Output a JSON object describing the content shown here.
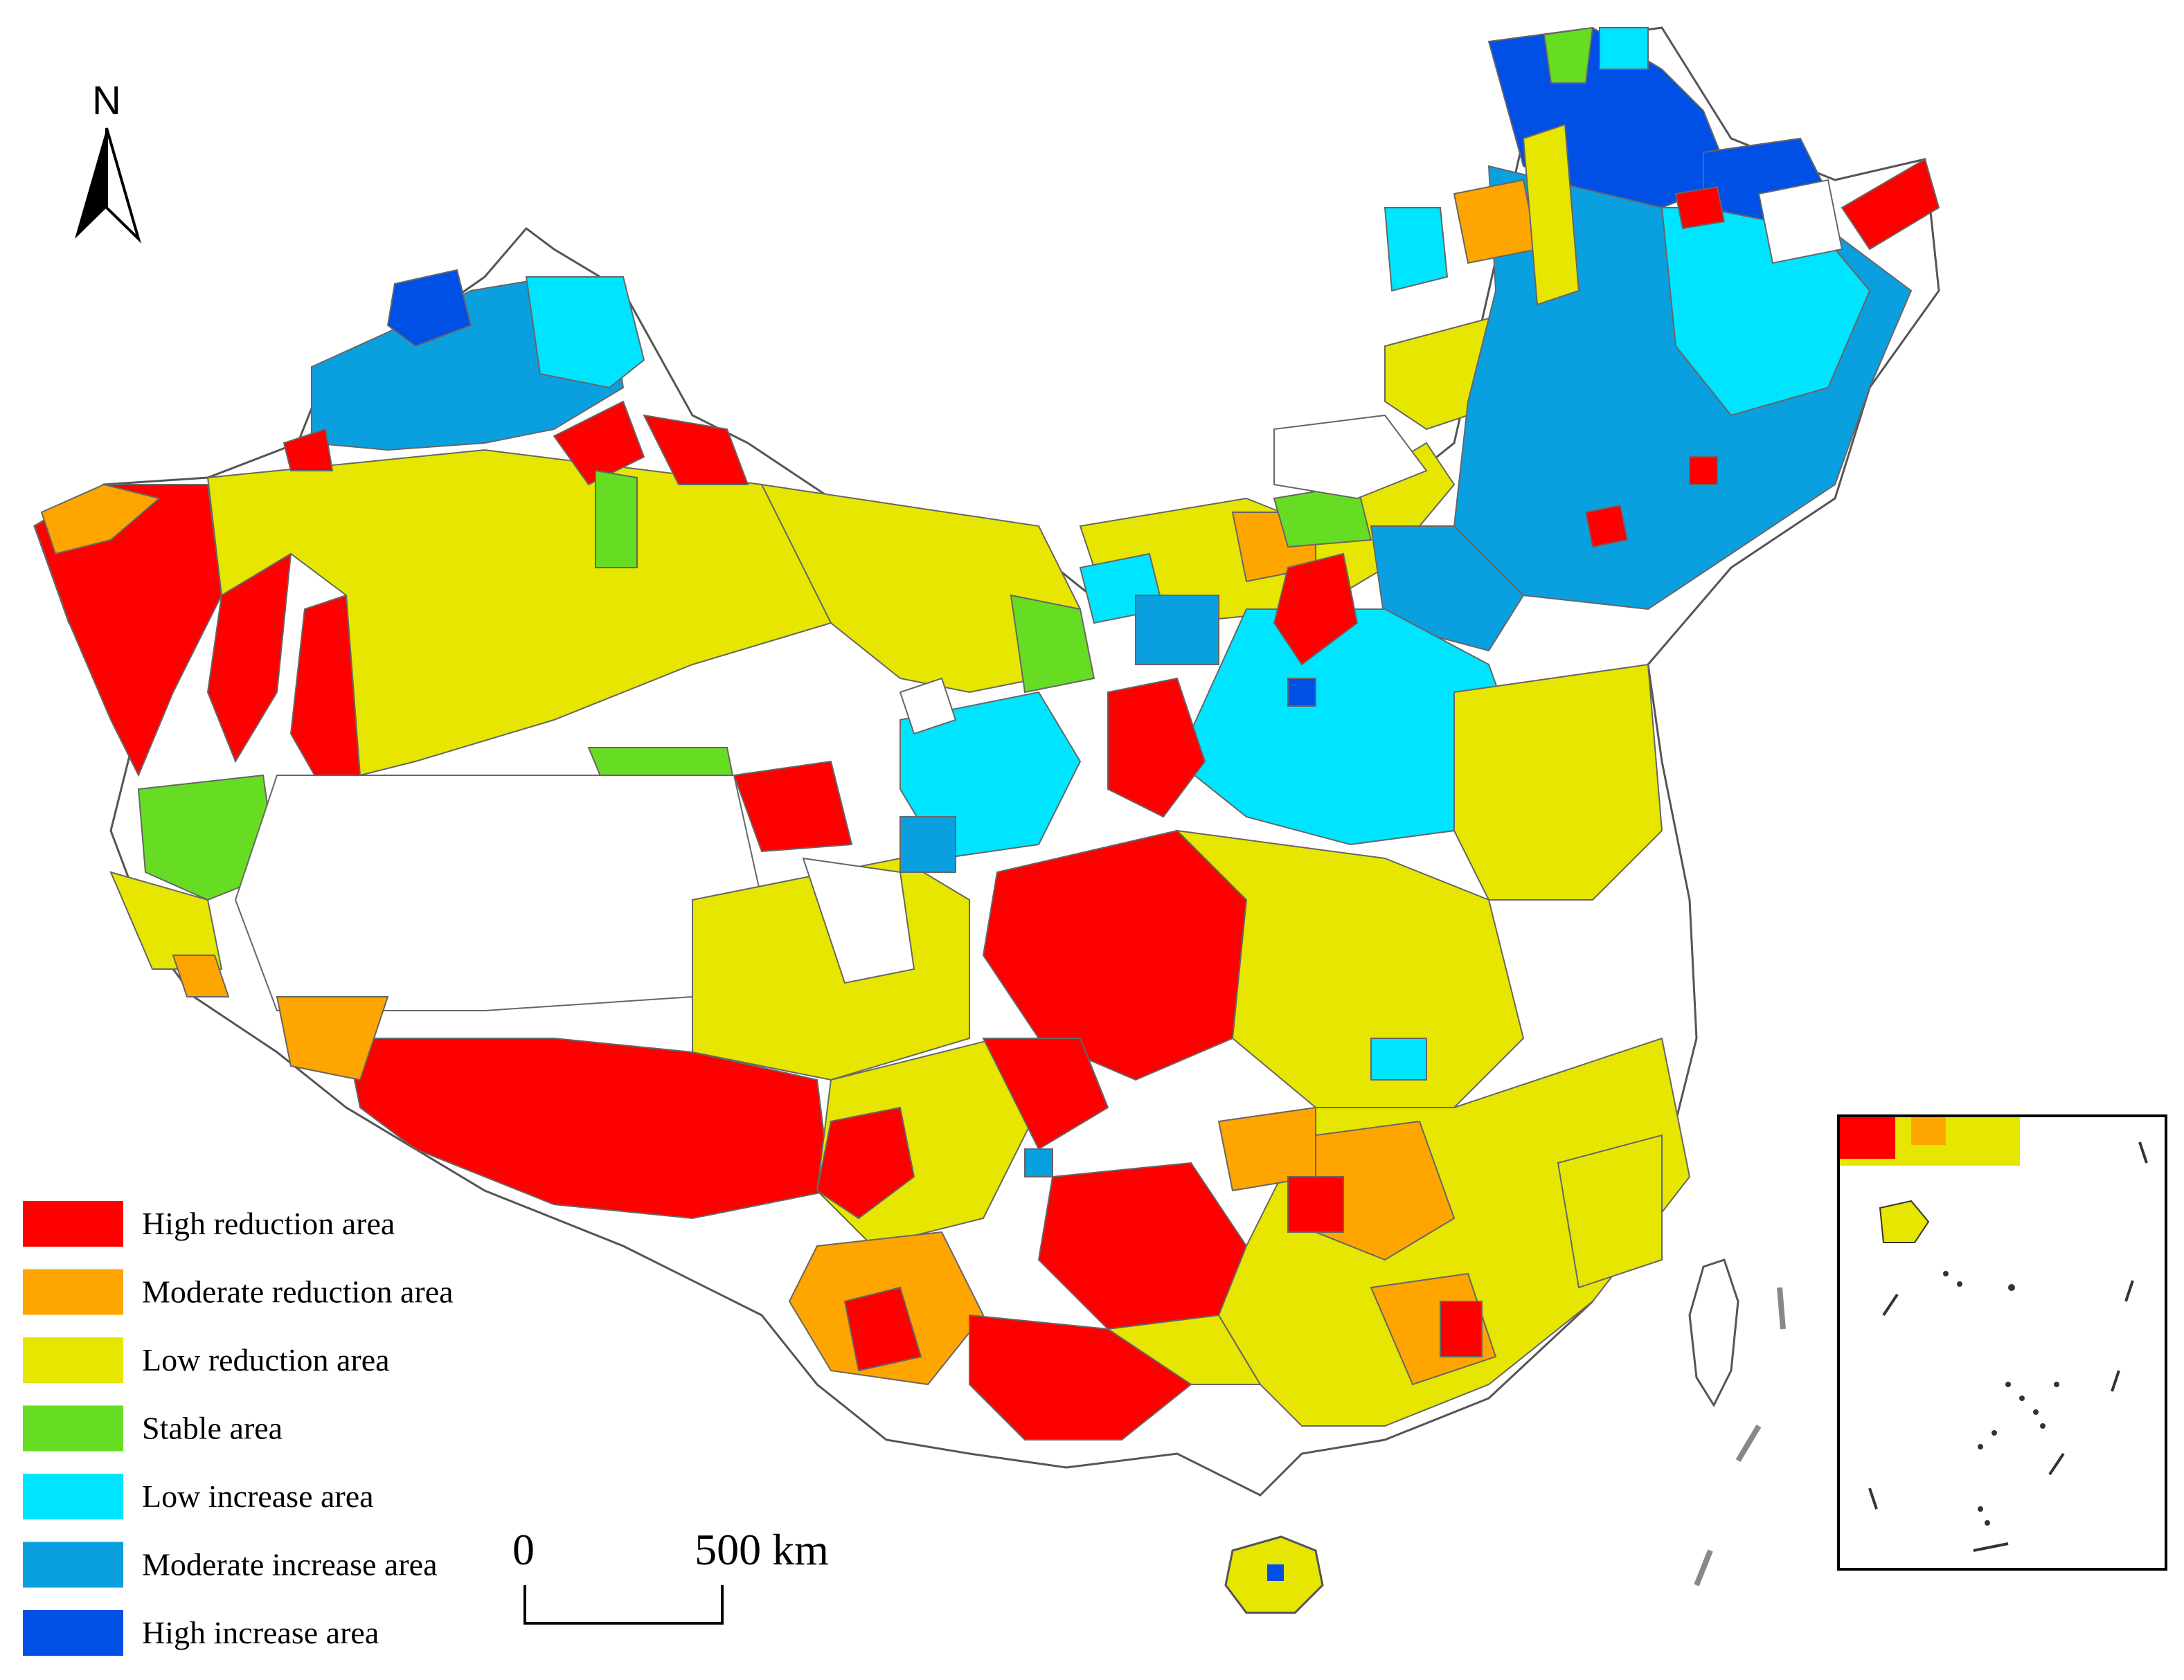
{
  "north_arrow": {
    "label": "N",
    "icon": "north-arrow-icon"
  },
  "legend": {
    "items": [
      {
        "label": "High reduction area",
        "color": "#ff0000"
      },
      {
        "label": "Moderate reduction area",
        "color": "#ffa500"
      },
      {
        "label": "Low reduction area",
        "color": "#e6e600"
      },
      {
        "label": "Stable area",
        "color": "#66dd22"
      },
      {
        "label": "Low increase area",
        "color": "#00e5ff"
      },
      {
        "label": "Moderate increase area",
        "color": "#0aa0e0"
      },
      {
        "label": "High increase area",
        "color": "#0050e6"
      }
    ]
  },
  "scale_bar": {
    "start_label": "0",
    "end_label": "500 km"
  },
  "colors": {
    "no_data": "#ffffff",
    "boundary": "#666666"
  }
}
